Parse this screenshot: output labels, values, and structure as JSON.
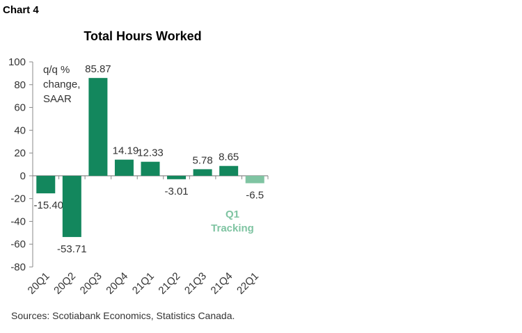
{
  "header": {
    "chart_label": "Chart 4",
    "sources": "Sources: Scotiabank Economics, Statistics Canada."
  },
  "chart_data": {
    "type": "bar",
    "title": "Total Hours Worked",
    "ylabel": "q/q %\nchange,\nSAAR",
    "xlabel": "",
    "categories": [
      "20Q1",
      "20Q2",
      "20Q3",
      "20Q4",
      "21Q1",
      "21Q2",
      "21Q3",
      "21Q4",
      "22Q1"
    ],
    "values": [
      -15.4,
      -53.71,
      85.87,
      14.19,
      12.33,
      -3.01,
      5.78,
      8.65,
      -6.5
    ],
    "data_labels": [
      "-15.40",
      "-53.71",
      "85.87",
      "14.19",
      "12.33",
      "-3.01",
      "5.78",
      "8.65",
      "-6.5"
    ],
    "ylim": [
      -80,
      100
    ],
    "yticks": [
      -80,
      -60,
      -40,
      -20,
      0,
      20,
      40,
      60,
      80,
      100
    ],
    "grid": false,
    "colors": {
      "actual": "#13875d",
      "tracking": "#7fc4a2"
    },
    "annotation": {
      "text_line1": "Q1",
      "text_line2": "Tracking",
      "color": "#7fc4a2"
    }
  }
}
